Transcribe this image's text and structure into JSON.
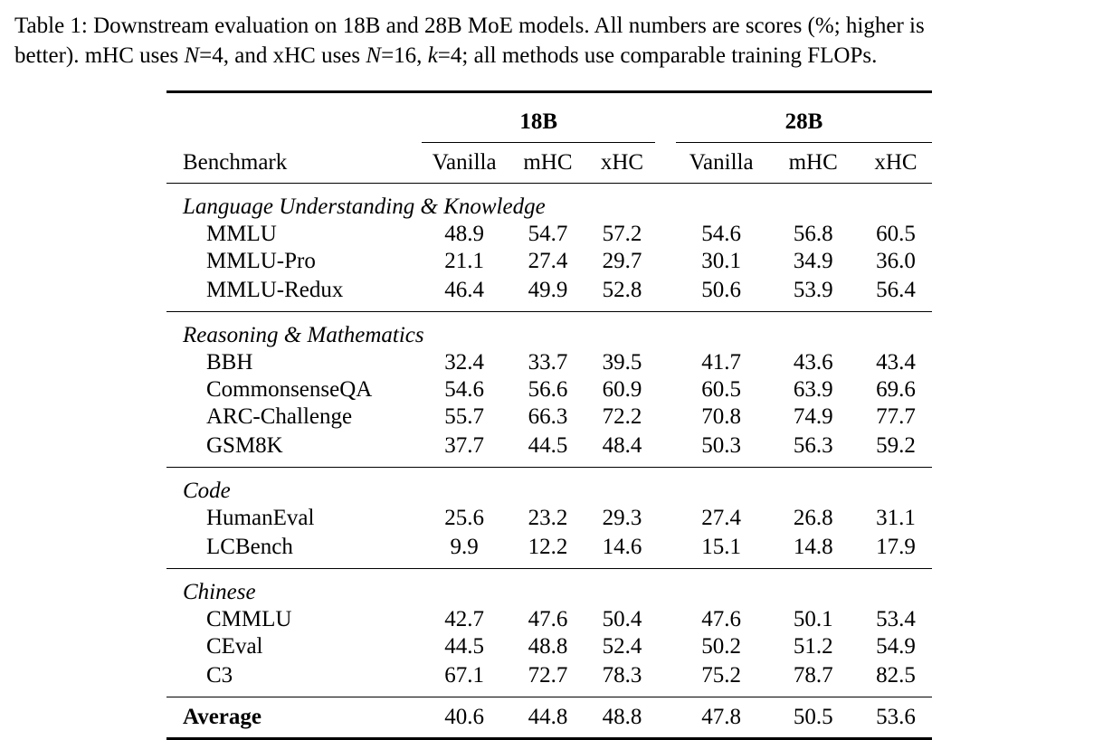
{
  "caption": {
    "label": "Table 1:",
    "line1": "Downstream evaluation on 18B and 28B MoE models. All numbers are scores (%; higher is",
    "line2_a": "better). mHC uses ",
    "line2_n1": "N",
    "line2_b": "=4, and xHC uses ",
    "line2_n2": "N",
    "line2_c": "=16, ",
    "line2_k": "k",
    "line2_d": "=4; all methods use comparable training FLOPs."
  },
  "table": {
    "groups": [
      "18B",
      "28B"
    ],
    "bench_header": "Benchmark",
    "columns": [
      "Vanilla",
      "mHC",
      "xHC",
      "Vanilla",
      "mHC",
      "xHC"
    ],
    "sections": [
      {
        "title": "Language Understanding & Knowledge",
        "rows": [
          {
            "name": "MMLU",
            "values": [
              "48.9",
              "54.7",
              "57.2",
              "54.6",
              "56.8",
              "60.5"
            ],
            "bold": [
              2,
              5
            ]
          },
          {
            "name": "MMLU-Pro",
            "values": [
              "21.1",
              "27.4",
              "29.7",
              "30.1",
              "34.9",
              "36.0"
            ],
            "bold": [
              2,
              5
            ]
          },
          {
            "name": "MMLU-Redux",
            "values": [
              "46.4",
              "49.9",
              "52.8",
              "50.6",
              "53.9",
              "56.4"
            ],
            "bold": [
              2,
              5
            ]
          }
        ]
      },
      {
        "title": "Reasoning & Mathematics",
        "rows": [
          {
            "name": "BBH",
            "values": [
              "32.4",
              "33.7",
              "39.5",
              "41.7",
              "43.6",
              "43.4"
            ],
            "bold": [
              2,
              4
            ]
          },
          {
            "name": "CommonsenseQA",
            "values": [
              "54.6",
              "56.6",
              "60.9",
              "60.5",
              "63.9",
              "69.6"
            ],
            "bold": [
              2,
              5
            ]
          },
          {
            "name": "ARC-Challenge",
            "values": [
              "55.7",
              "66.3",
              "72.2",
              "70.8",
              "74.9",
              "77.7"
            ],
            "bold": [
              2,
              5
            ]
          },
          {
            "name": "GSM8K",
            "values": [
              "37.7",
              "44.5",
              "48.4",
              "50.3",
              "56.3",
              "59.2"
            ],
            "bold": [
              2,
              5
            ]
          }
        ]
      },
      {
        "title": "Code",
        "rows": [
          {
            "name": "HumanEval",
            "values": [
              "25.6",
              "23.2",
              "29.3",
              "27.4",
              "26.8",
              "31.1"
            ],
            "bold": [
              2,
              5
            ]
          },
          {
            "name": "LCBench",
            "values": [
              "9.9",
              "12.2",
              "14.6",
              "15.1",
              "14.8",
              "17.9"
            ],
            "bold": [
              2,
              5
            ]
          }
        ]
      },
      {
        "title": "Chinese",
        "rows": [
          {
            "name": "CMMLU",
            "values": [
              "42.7",
              "47.6",
              "50.4",
              "47.6",
              "50.1",
              "53.4"
            ],
            "bold": [
              2,
              5
            ]
          },
          {
            "name": "CEval",
            "values": [
              "44.5",
              "48.8",
              "52.4",
              "50.2",
              "51.2",
              "54.9"
            ],
            "bold": [
              2,
              5
            ]
          },
          {
            "name": "C3",
            "values": [
              "67.1",
              "72.7",
              "78.3",
              "75.2",
              "78.7",
              "82.5"
            ],
            "bold": [
              2,
              5
            ]
          }
        ]
      }
    ],
    "average": {
      "name": "Average",
      "values": [
        "40.6",
        "44.8",
        "48.8",
        "47.8",
        "50.5",
        "53.6"
      ],
      "bold": [
        2,
        5
      ]
    }
  }
}
